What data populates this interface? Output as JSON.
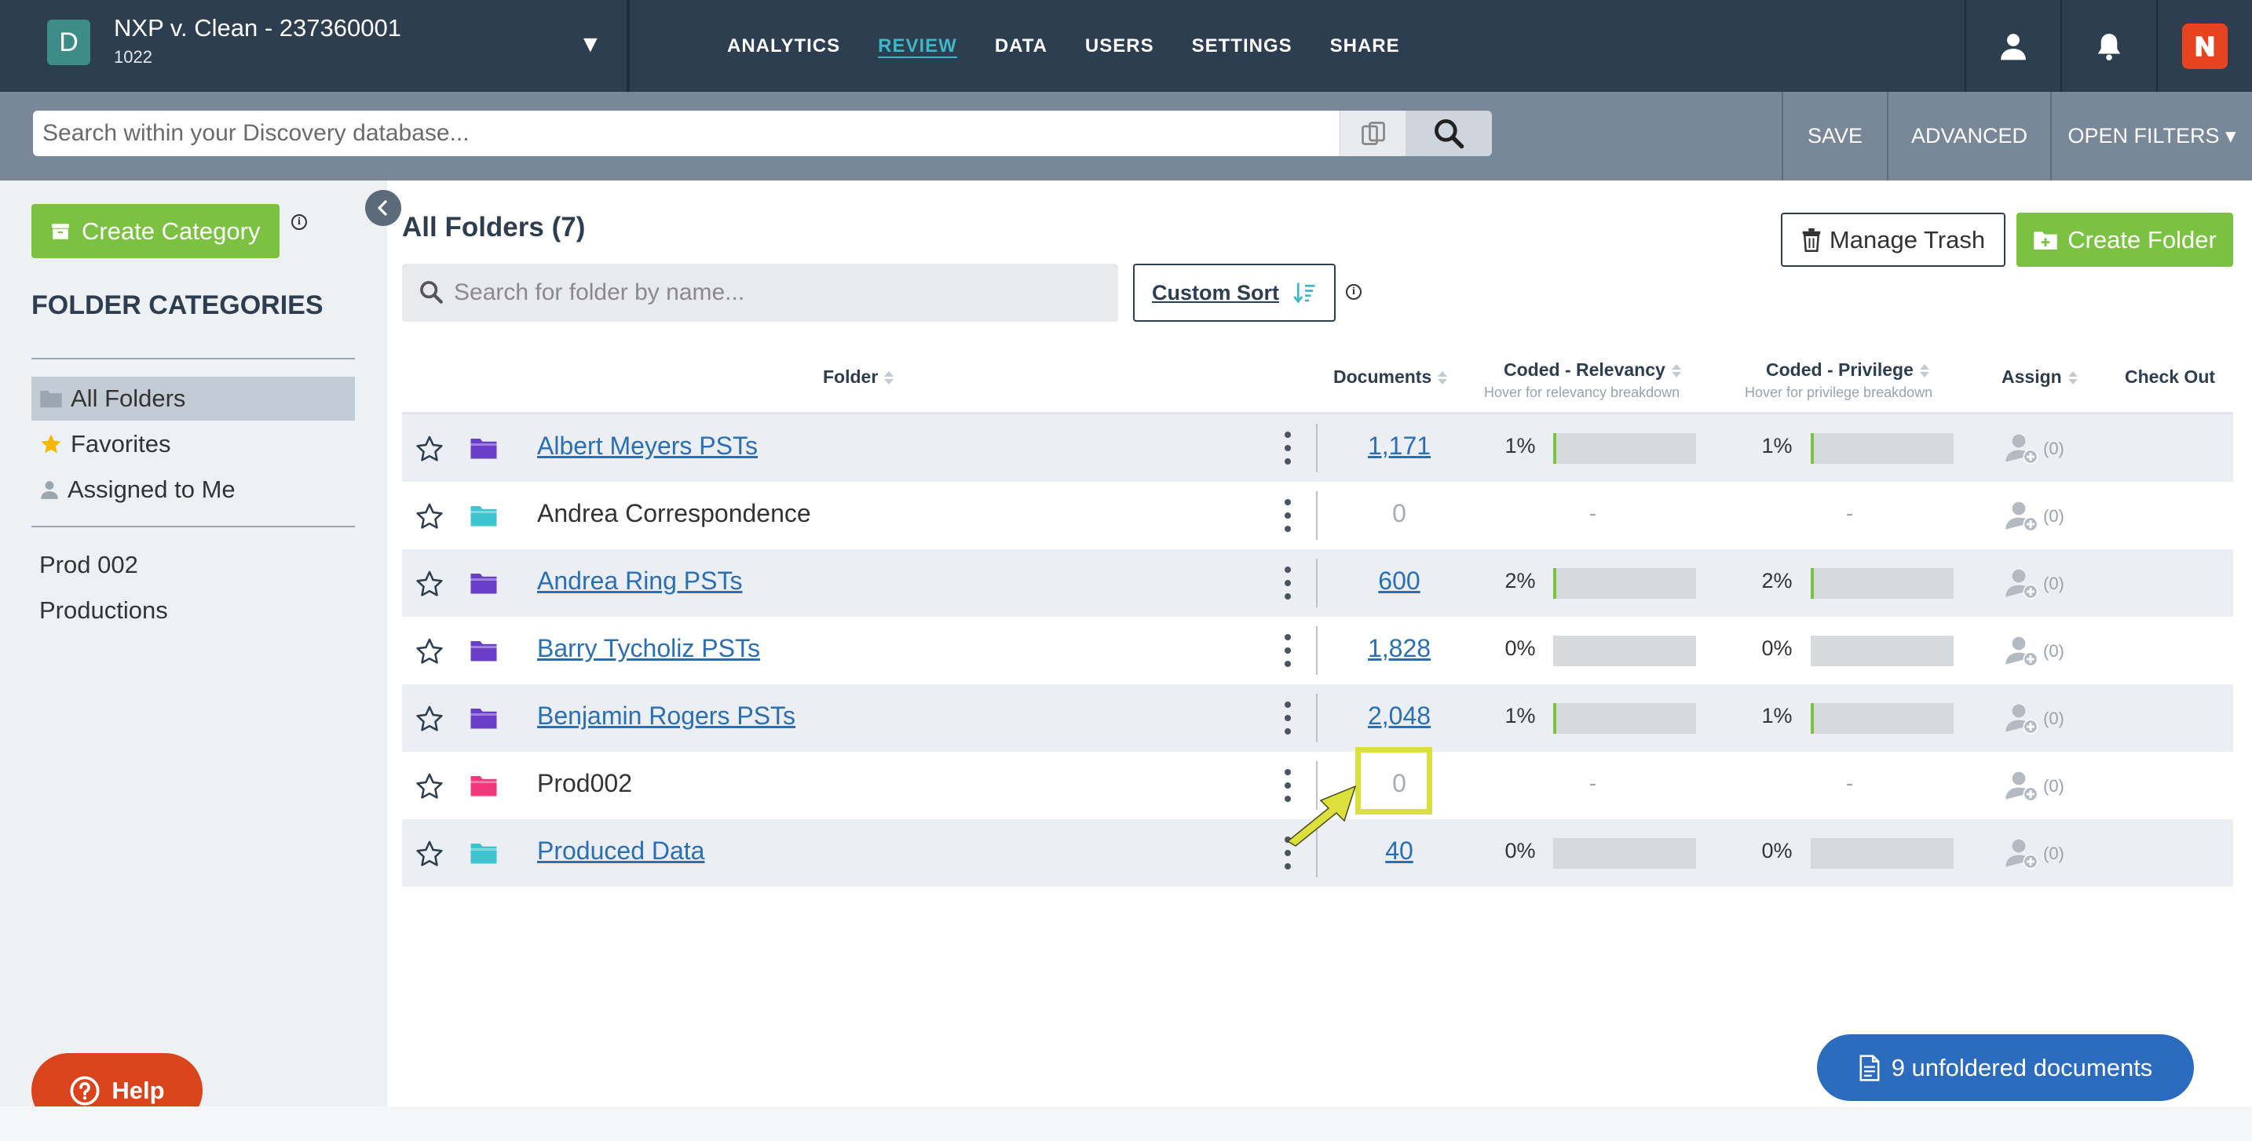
{
  "project": {
    "badge": "D",
    "title": "NXP v. Clean - 237360001",
    "subtitle": "1022",
    "caret": "▼"
  },
  "nav": {
    "analytics": "ANALYTICS",
    "review": "REVIEW",
    "data": "DATA",
    "users": "USERS",
    "settings": "SETTINGS",
    "share": "SHARE"
  },
  "search": {
    "placeholder": "Search within your Discovery database...",
    "save": "SAVE",
    "advanced": "ADVANCED",
    "open_filters": "OPEN FILTERS ▾"
  },
  "sidebar": {
    "create_category": "Create Category",
    "heading": "FOLDER CATEGORIES",
    "items": [
      {
        "label": "All Folders"
      },
      {
        "label": "Favorites"
      },
      {
        "label": "Assigned to Me"
      }
    ],
    "extra": [
      "Prod 002",
      "Productions"
    ],
    "help": "Help"
  },
  "main": {
    "title": "All Folders (7)",
    "manage_trash": "Manage Trash",
    "create_folder": "Create Folder",
    "folder_search_placeholder": "Search for folder by name...",
    "custom_sort": "Custom Sort",
    "unfoldered": "9 unfoldered documents"
  },
  "table": {
    "headers": {
      "folder": "Folder",
      "documents": "Documents",
      "relevancy": "Coded - Relevancy",
      "relevancy_sub": "Hover for relevancy breakdown",
      "privilege": "Coded - Privilege",
      "privilege_sub": "Hover for privilege breakdown",
      "assign": "Assign",
      "checkout": "Check Out"
    },
    "rows": [
      {
        "name": "Albert Meyers PSTs",
        "docs": "1,171",
        "rel": "1%",
        "priv": "1%",
        "assign": "(0)",
        "color": "#6a3fc8"
      },
      {
        "name": "Andrea Correspondence",
        "docs": "0",
        "rel": "-",
        "priv": "-",
        "assign": "(0)",
        "color": "#3ec3cf"
      },
      {
        "name": "Andrea Ring PSTs",
        "docs": "600",
        "rel": "2%",
        "priv": "2%",
        "assign": "(0)",
        "color": "#6a3fc8"
      },
      {
        "name": "Barry Tycholiz PSTs",
        "docs": "1,828",
        "rel": "0%",
        "priv": "0%",
        "assign": "(0)",
        "color": "#6a3fc8"
      },
      {
        "name": "Benjamin Rogers PSTs",
        "docs": "2,048",
        "rel": "1%",
        "priv": "1%",
        "assign": "(0)",
        "color": "#6a3fc8"
      },
      {
        "name": "Prod002",
        "docs": "0",
        "rel": "-",
        "priv": "-",
        "assign": "(0)",
        "color": "#f0387a"
      },
      {
        "name": "Produced Data",
        "docs": "40",
        "rel": "0%",
        "priv": "0%",
        "assign": "(0)",
        "color": "#3ec3cf"
      }
    ]
  }
}
